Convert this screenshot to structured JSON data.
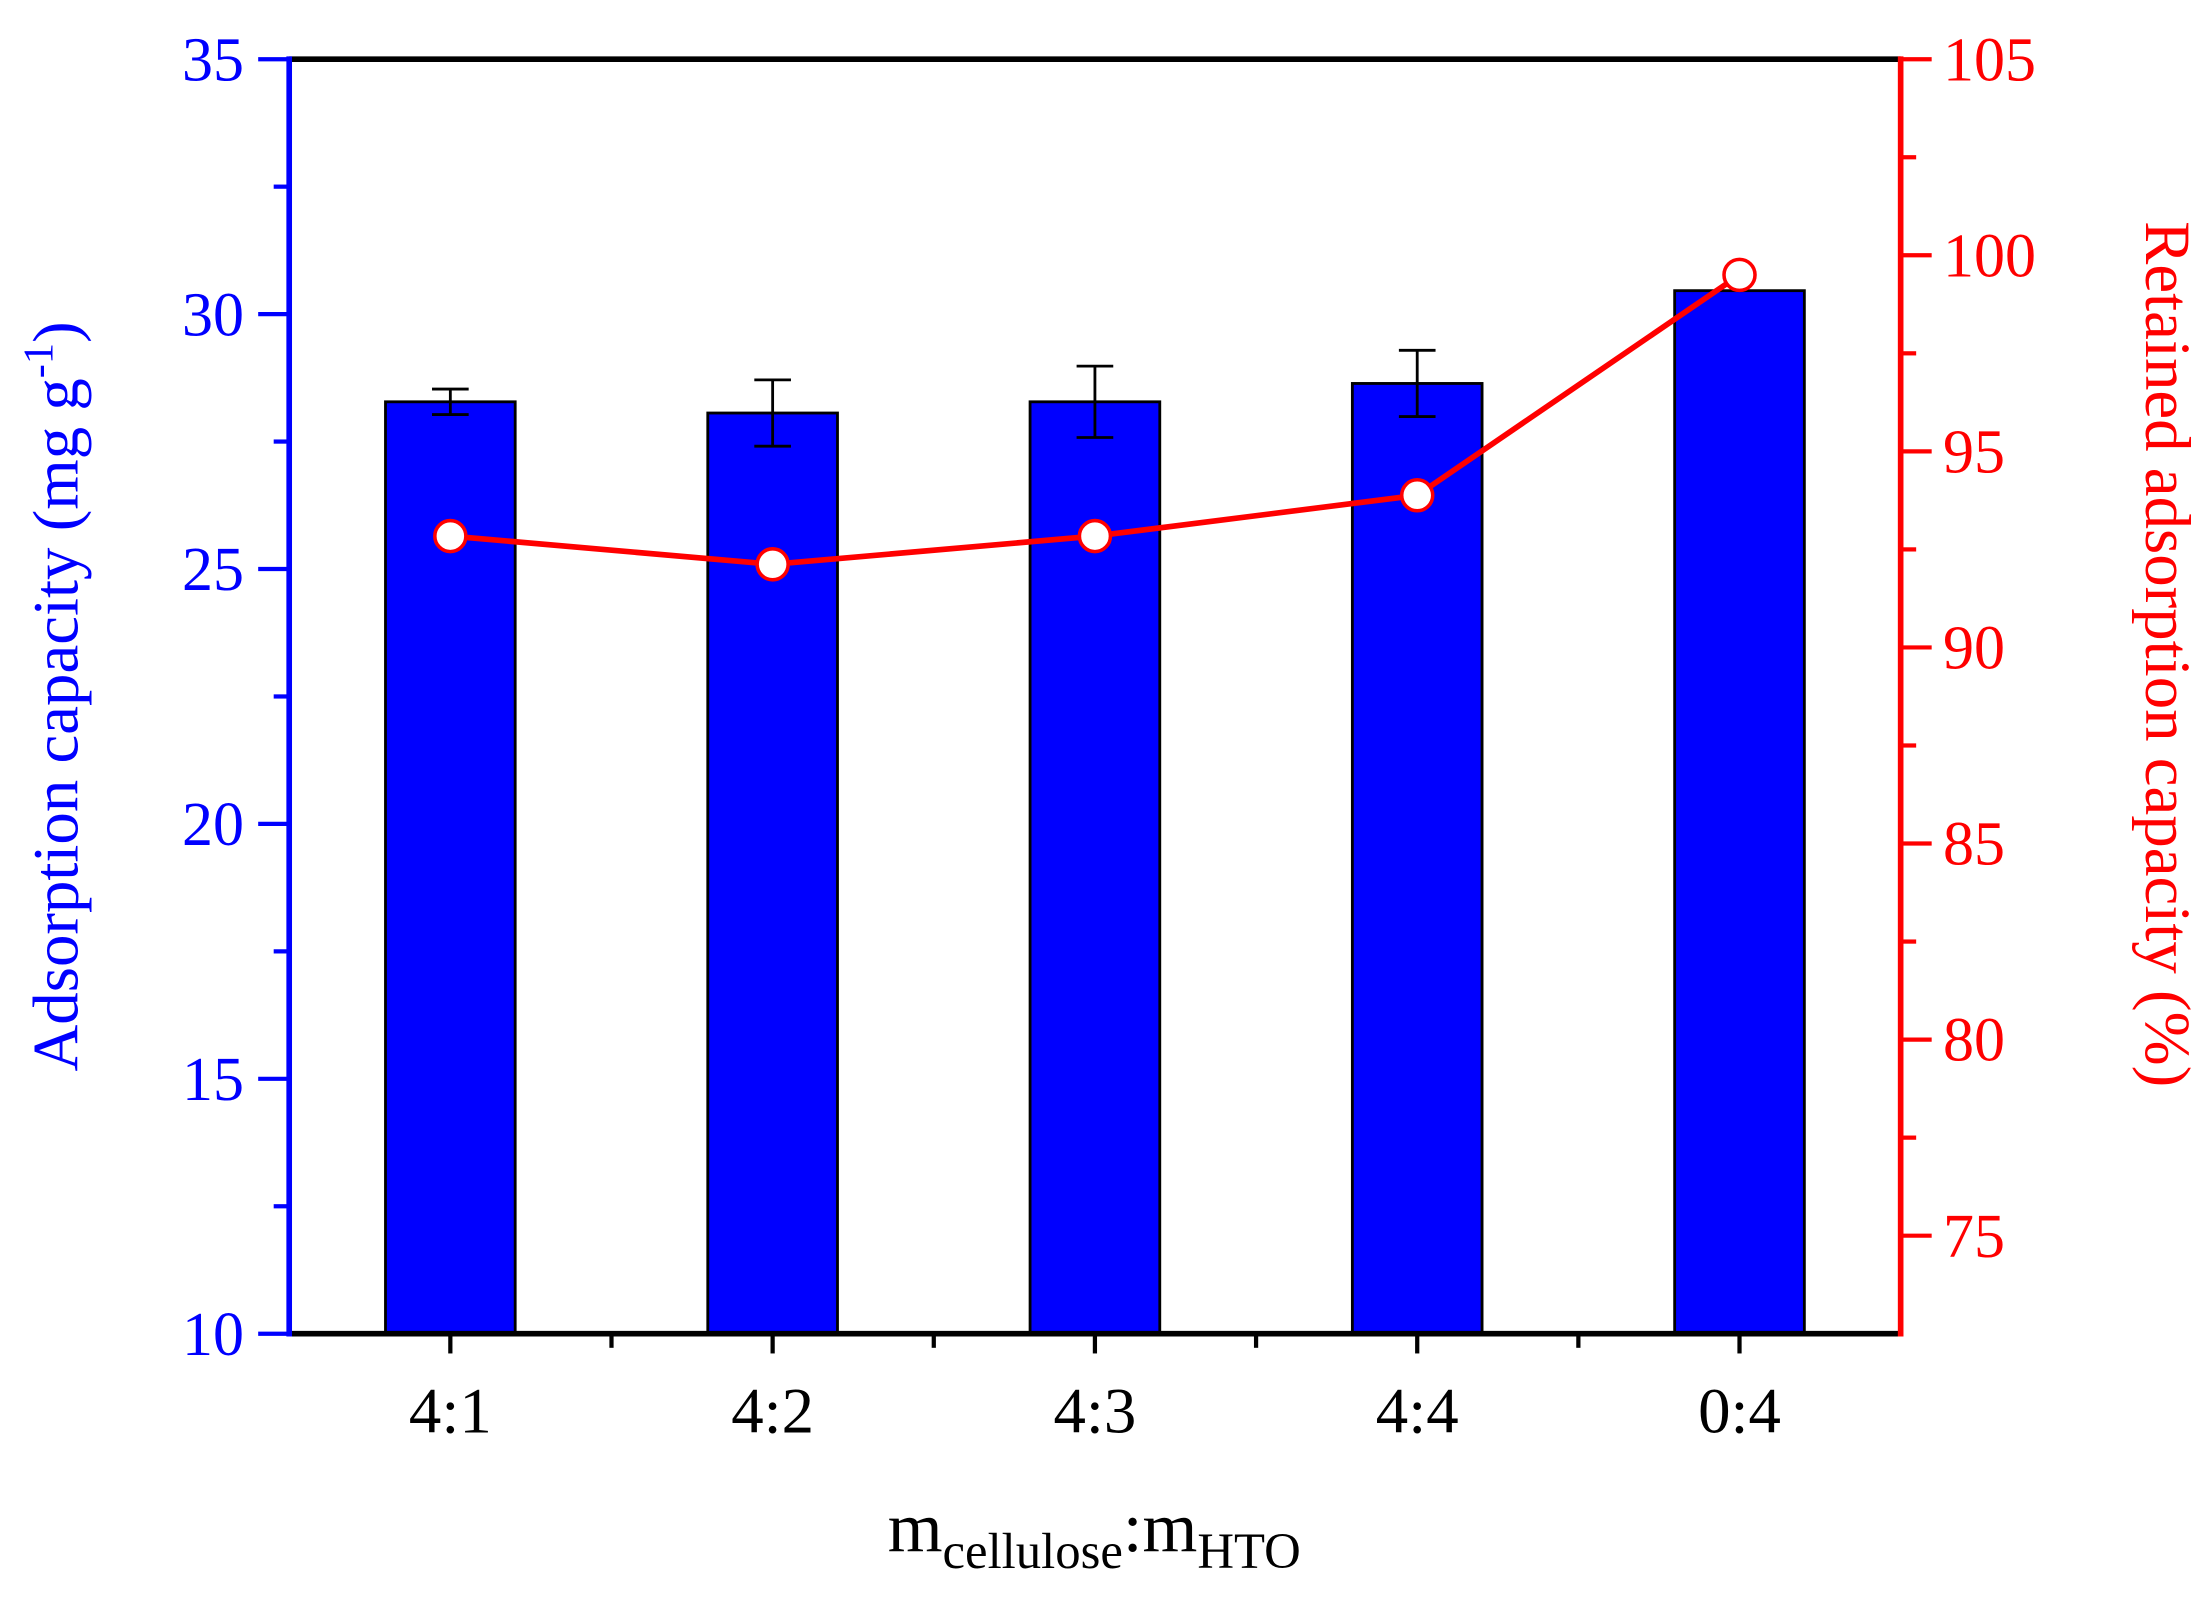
{
  "chart_data": {
    "type": "bar",
    "categories": [
      "4:1",
      "4:2",
      "4:3",
      "4:4",
      "0:4"
    ],
    "series": [
      {
        "type": "bar",
        "color": "#0000ff",
        "values": [
          28.28,
          28.06,
          28.28,
          28.64,
          30.46
        ],
        "errors": [
          0.25,
          0.65,
          0.7,
          0.65,
          null
        ]
      },
      {
        "type": "line",
        "axis": "y2",
        "color": "#ff0000",
        "values": [
          92.84,
          92.12,
          92.84,
          93.88,
          99.5
        ]
      }
    ],
    "ylim": [
      10,
      35
    ],
    "yticks": [
      10,
      15,
      20,
      25,
      30,
      35
    ],
    "y2lim": [
      72.5,
      105
    ],
    "y2ticks": [
      75,
      80,
      85,
      90,
      95,
      100,
      105
    ],
    "ylabel": [
      "Adsorption capacity (mg g",
      "-1",
      ")"
    ],
    "y2label": "Retained adsorption capacity (%)",
    "xlabel": [
      "m",
      "cellulose",
      ":m",
      "HTO"
    ],
    "ycolor": "#0000ff",
    "y2color": "#ff0000"
  }
}
